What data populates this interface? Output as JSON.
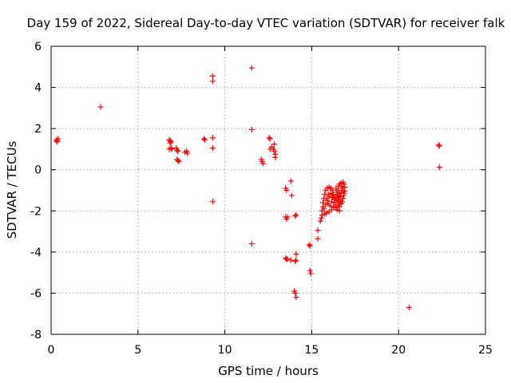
{
  "chart_data": {
    "type": "scatter",
    "title": "Day 159 of 2022, Sidereal Day-to-day VTEC variation (SDTVAR) for receiver falk",
    "xlabel": "GPS time / hours",
    "ylabel": "SDTVAR / TECUs",
    "xlim": [
      0,
      25
    ],
    "ylim": [
      -8,
      6
    ],
    "xticks": [
      0,
      5,
      10,
      15,
      20,
      25
    ],
    "yticks": [
      -8,
      -6,
      -4,
      -2,
      0,
      2,
      4,
      6
    ],
    "grid": true,
    "marker": "plus",
    "color": "#ff0000",
    "points": [
      [
        0.3,
        1.45
      ],
      [
        0.35,
        1.4
      ],
      [
        0.4,
        1.5
      ],
      [
        0.33,
        1.35
      ],
      [
        2.85,
        3.05
      ],
      [
        6.8,
        1.45
      ],
      [
        6.85,
        1.4
      ],
      [
        6.9,
        1.35
      ],
      [
        6.85,
        1.3
      ],
      [
        6.8,
        1.0
      ],
      [
        6.9,
        1.05
      ],
      [
        6.95,
        1.0
      ],
      [
        7.2,
        1.05
      ],
      [
        7.25,
        0.95
      ],
      [
        7.3,
        0.9
      ],
      [
        7.25,
        0.5
      ],
      [
        7.3,
        0.45
      ],
      [
        7.35,
        0.4
      ],
      [
        7.7,
        0.85
      ],
      [
        7.8,
        0.9
      ],
      [
        7.85,
        0.8
      ],
      [
        8.8,
        1.5
      ],
      [
        8.85,
        1.45
      ],
      [
        9.3,
        4.55
      ],
      [
        9.3,
        4.3
      ],
      [
        9.3,
        1.55
      ],
      [
        9.3,
        1.05
      ],
      [
        9.3,
        -1.55
      ],
      [
        11.55,
        4.95
      ],
      [
        11.55,
        1.95
      ],
      [
        11.55,
        -3.6
      ],
      [
        12.1,
        0.5
      ],
      [
        12.15,
        0.4
      ],
      [
        12.2,
        0.3
      ],
      [
        12.55,
        1.55
      ],
      [
        12.6,
        1.5
      ],
      [
        12.6,
        1.0
      ],
      [
        12.7,
        1.1
      ],
      [
        12.8,
        1.0
      ],
      [
        12.85,
        0.9
      ],
      [
        12.85,
        1.25
      ],
      [
        12.9,
        0.75
      ],
      [
        12.9,
        0.6
      ],
      [
        13.5,
        -0.9
      ],
      [
        13.55,
        -1.0
      ],
      [
        13.8,
        -0.55
      ],
      [
        13.85,
        -1.25
      ],
      [
        13.5,
        -2.3
      ],
      [
        13.55,
        -2.4
      ],
      [
        13.6,
        -2.3
      ],
      [
        14.05,
        -2.25
      ],
      [
        14.1,
        -2.2
      ],
      [
        13.5,
        -4.3
      ],
      [
        13.55,
        -4.35
      ],
      [
        13.6,
        -4.35
      ],
      [
        13.8,
        -4.4
      ],
      [
        14.05,
        -4.45
      ],
      [
        14.1,
        -4.4
      ],
      [
        14.1,
        -4.1
      ],
      [
        14.0,
        -5.9
      ],
      [
        14.05,
        -6.0
      ],
      [
        14.1,
        -6.2
      ],
      [
        14.85,
        -3.65
      ],
      [
        14.9,
        -3.7
      ],
      [
        14.9,
        -4.9
      ],
      [
        14.95,
        -5.05
      ],
      [
        15.35,
        -2.95
      ],
      [
        15.35,
        -3.35
      ],
      [
        15.5,
        -2.5
      ],
      [
        15.55,
        -2.35
      ],
      [
        15.6,
        -2.2
      ],
      [
        15.6,
        -2.0
      ],
      [
        15.65,
        -1.8
      ],
      [
        15.65,
        -1.6
      ],
      [
        15.7,
        -1.4
      ],
      [
        15.75,
        -1.2
      ],
      [
        15.8,
        -1.0
      ],
      [
        15.9,
        -0.9
      ],
      [
        16.0,
        -0.85
      ],
      [
        16.1,
        -0.9
      ],
      [
        16.2,
        -1.0
      ],
      [
        16.25,
        -1.2
      ],
      [
        16.3,
        -1.4
      ],
      [
        16.3,
        -1.6
      ],
      [
        16.25,
        -1.8
      ],
      [
        16.15,
        -1.95
      ],
      [
        16.0,
        -2.05
      ],
      [
        15.85,
        -2.1
      ],
      [
        15.75,
        -2.15
      ],
      [
        15.7,
        -1.9
      ],
      [
        15.8,
        -1.7
      ],
      [
        15.9,
        -1.5
      ],
      [
        16.0,
        -1.3
      ],
      [
        16.1,
        -1.15
      ],
      [
        15.95,
        -1.2
      ],
      [
        15.85,
        -1.4
      ],
      [
        15.95,
        -1.65
      ],
      [
        16.05,
        -1.75
      ],
      [
        16.15,
        -1.55
      ],
      [
        16.2,
        -1.35
      ],
      [
        16.4,
        -0.9
      ],
      [
        16.45,
        -1.1
      ],
      [
        16.5,
        -1.3
      ],
      [
        16.5,
        -1.5
      ],
      [
        16.55,
        -1.7
      ],
      [
        16.6,
        -1.8
      ],
      [
        16.6,
        -2.0
      ],
      [
        16.45,
        -1.95
      ],
      [
        16.4,
        -1.7
      ],
      [
        16.4,
        -1.45
      ],
      [
        16.45,
        -1.25
      ],
      [
        16.5,
        -1.0
      ],
      [
        16.55,
        -0.8
      ],
      [
        16.6,
        -0.7
      ],
      [
        16.7,
        -0.65
      ],
      [
        16.8,
        -0.6
      ],
      [
        16.85,
        -0.7
      ],
      [
        16.9,
        -0.85
      ],
      [
        16.9,
        -1.05
      ],
      [
        16.85,
        -1.25
      ],
      [
        16.8,
        -1.4
      ],
      [
        16.75,
        -1.55
      ],
      [
        16.7,
        -1.65
      ],
      [
        16.65,
        -1.5
      ],
      [
        16.65,
        -1.3
      ],
      [
        16.7,
        -1.1
      ],
      [
        16.75,
        -0.9
      ],
      [
        16.6,
        -1.15
      ],
      [
        16.55,
        -1.35
      ],
      [
        16.7,
        -0.8
      ],
      [
        16.8,
        -1.0
      ],
      [
        16.85,
        -1.15
      ],
      [
        16.6,
        -1.55
      ],
      [
        16.5,
        -1.8
      ],
      [
        16.35,
        -1.85
      ],
      [
        20.6,
        -6.7
      ],
      [
        22.3,
        1.2
      ],
      [
        22.35,
        1.15
      ],
      [
        22.35,
        0.12
      ]
    ]
  }
}
